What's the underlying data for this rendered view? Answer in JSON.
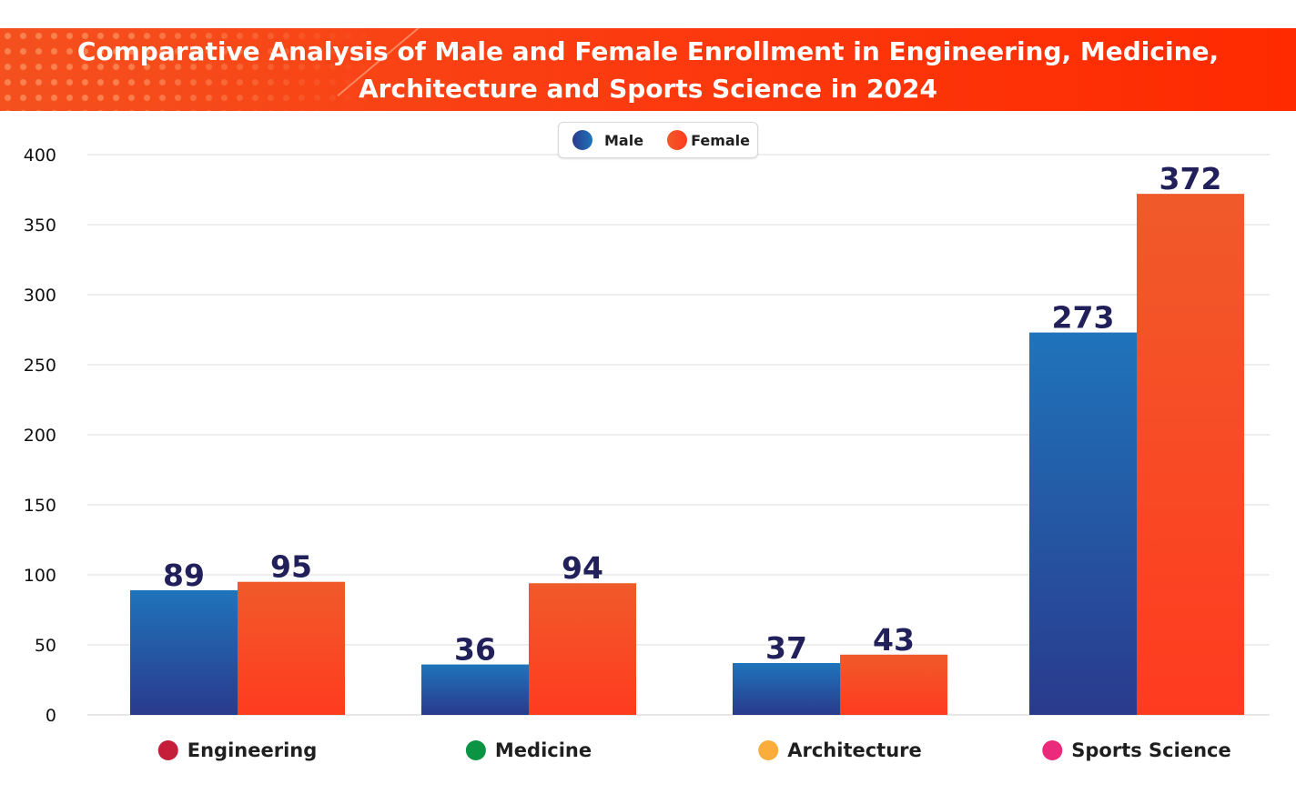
{
  "chart_data": {
    "type": "bar",
    "title": "Comparative Analysis of Male and Female Enrollment in Engineering, Medicine, Architecture and Sports Science in 2024",
    "title_lines": [
      "Comparative Analysis of Male and Female Enrollment in Engineering, Medicine,",
      "Architecture and Sports Science in 2024"
    ],
    "xlabel": "",
    "ylabel": "",
    "categories": [
      "Engineering",
      "Medicine",
      "Architecture",
      "Sports Science"
    ],
    "category_marker_colors": [
      "#c41e3a",
      "#0a9444",
      "#fbad3c",
      "#ec2a7b"
    ],
    "series": [
      {
        "name": "Male",
        "values": [
          89,
          36,
          37,
          273
        ],
        "color_top": "#1f74bb",
        "color_bottom": "#2a3a8c"
      },
      {
        "name": "Female",
        "values": [
          95,
          94,
          43,
          372
        ],
        "color_top": "#f05a2a",
        "color_bottom": "#ff3b1f"
      }
    ],
    "ylim": [
      0,
      400
    ],
    "yticks": [
      0,
      50,
      100,
      150,
      200,
      250,
      300,
      350,
      400
    ],
    "grid": true,
    "legend_position": "top-center",
    "data_labels": true,
    "label_color": "#22205a"
  },
  "legend": {
    "items": [
      {
        "label": "Male"
      },
      {
        "label": "Female"
      }
    ]
  }
}
